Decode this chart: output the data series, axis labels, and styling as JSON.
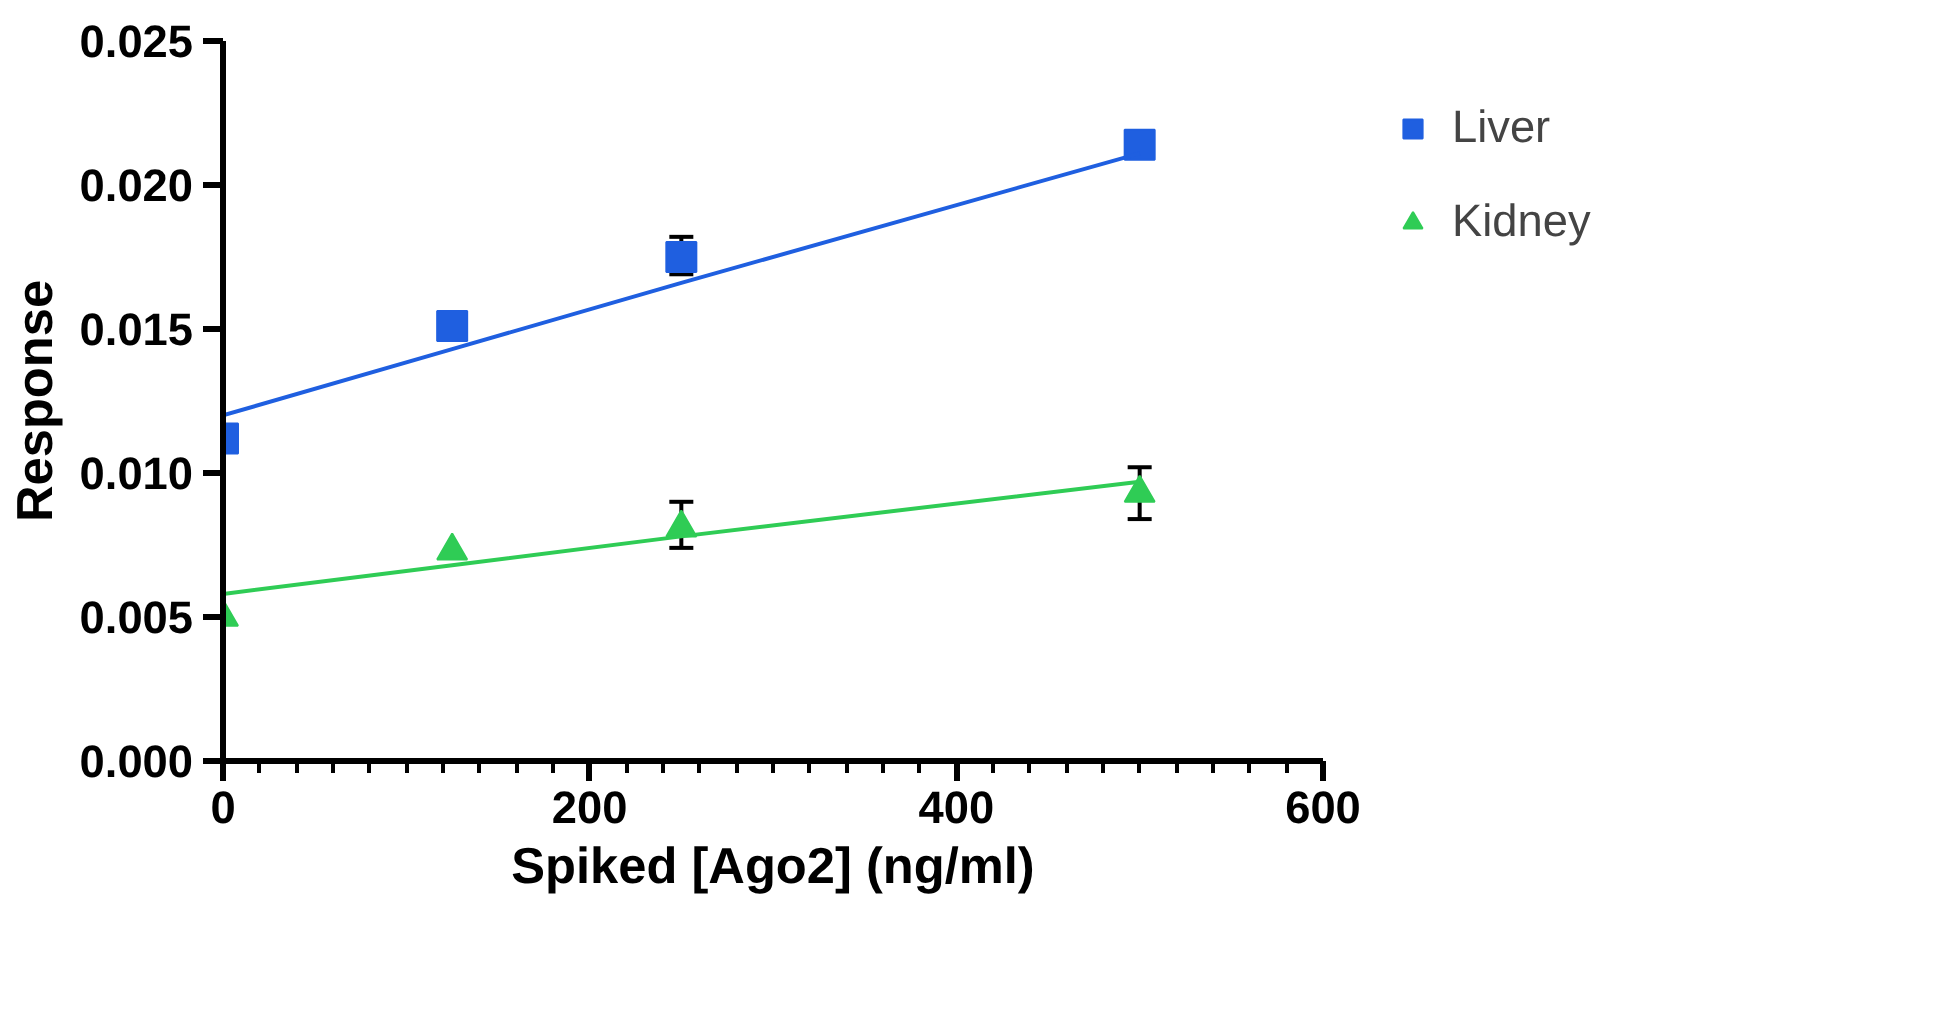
{
  "chart_data": {
    "type": "scatter",
    "xlabel": "Spiked [Ago2] (ng/ml)",
    "ylabel": "Response",
    "x": [
      0,
      125,
      250,
      500
    ],
    "series": [
      {
        "name": "Liver",
        "color": "#1f5fe0",
        "marker": "square",
        "values": [
          0.0112,
          0.0151,
          0.0175,
          0.0214
        ],
        "errors": [
          null,
          null,
          [
            0.0169,
            0.0182
          ],
          null
        ]
      },
      {
        "name": "Kidney",
        "color": "#2fcc55",
        "marker": "triangle",
        "values": [
          0.005,
          0.0073,
          0.0081,
          0.0093
        ],
        "errors": [
          null,
          null,
          [
            0.0074,
            0.009
          ],
          [
            0.0084,
            0.0102
          ]
        ]
      },
      {
        "type": "line",
        "color": "#1f5fe0",
        "values": [
          0.012,
          0.0143,
          0.0166,
          0.0211
        ],
        "marker": "none"
      },
      {
        "type": "line",
        "color": "#2fcc55",
        "values": [
          0.0058,
          0.0068,
          0.0078,
          0.0097
        ],
        "marker": "none"
      }
    ],
    "xlim": [
      0,
      600
    ],
    "ylim": [
      0,
      0.025
    ],
    "xticks": [
      0,
      {
        "value": 20,
        "label": null
      },
      {
        "value": 40,
        "label": null
      },
      {
        "value": 60,
        "label": null
      },
      {
        "value": 80,
        "label": null
      },
      {
        "value": 100,
        "label": null
      },
      {
        "value": 120,
        "label": null
      },
      {
        "value": 140,
        "label": null
      },
      {
        "value": 160,
        "label": null
      },
      {
        "value": 180,
        "label": null
      },
      200,
      {
        "value": 220,
        "label": null
      },
      {
        "value": 240,
        "label": null
      },
      {
        "value": 260,
        "label": null
      },
      {
        "value": 280,
        "label": null
      },
      {
        "value": 300,
        "label": null
      },
      {
        "value": 320,
        "label": null
      },
      {
        "value": 340,
        "label": null
      },
      {
        "value": 360,
        "label": null
      },
      {
        "value": 380,
        "label": null
      },
      400,
      {
        "value": 420,
        "label": null
      },
      {
        "value": 440,
        "label": null
      },
      {
        "value": 460,
        "label": null
      },
      {
        "value": 480,
        "label": null
      },
      {
        "value": 500,
        "label": null
      },
      {
        "value": 520,
        "label": null
      },
      {
        "value": 540,
        "label": null
      },
      {
        "value": 560,
        "label": null
      },
      {
        "value": 580,
        "label": null
      },
      600
    ],
    "yticks": [
      {
        "value": 0,
        "label": "0.000"
      },
      {
        "value": 0.005,
        "label": "0.005"
      },
      {
        "value": 0.01,
        "label": "0.010"
      },
      {
        "value": 0.015,
        "label": "0.015"
      },
      {
        "value": 0.02,
        "label": "0.020"
      },
      {
        "value": 0.025,
        "label": "0.025"
      }
    ],
    "grid": false,
    "legend": "right"
  }
}
